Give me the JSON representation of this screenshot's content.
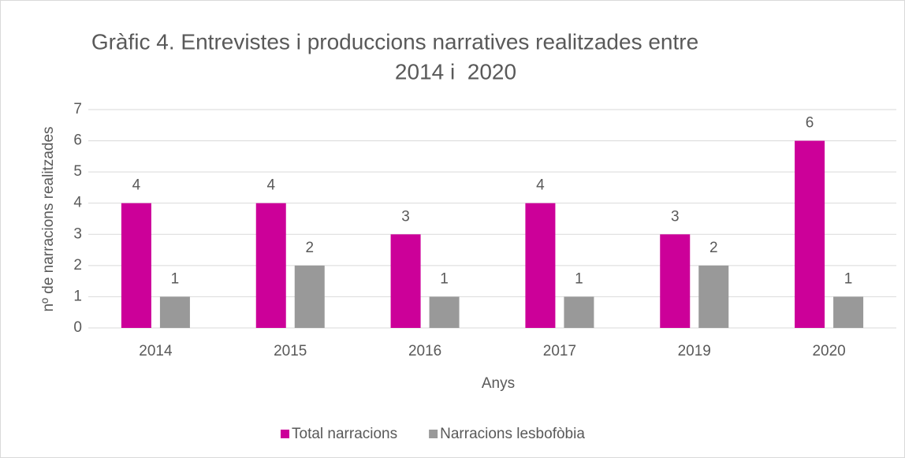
{
  "chart_data": {
    "type": "bar",
    "title": [
      "Gràfic 4. Entrevistes i produccions narratives realitzades entre",
      "2014 i  2020"
    ],
    "x_label": "Anys",
    "y_label": "nº de narracions realitzades",
    "categories": [
      "2014",
      "2015",
      "2016",
      "2017",
      "2019",
      "2020"
    ],
    "series": [
      {
        "name": "Total narracions",
        "color": "#cc0099",
        "values": [
          4,
          4,
          3,
          4,
          3,
          6
        ]
      },
      {
        "name": "Narracions lesbofòbia",
        "color": "#999999",
        "values": [
          1,
          2,
          1,
          1,
          2,
          1
        ]
      }
    ],
    "ylim": [
      0,
      7
    ],
    "yticks": [
      0,
      1,
      2,
      3,
      4,
      5,
      6,
      7
    ],
    "grid": true,
    "legend": "bottom"
  }
}
